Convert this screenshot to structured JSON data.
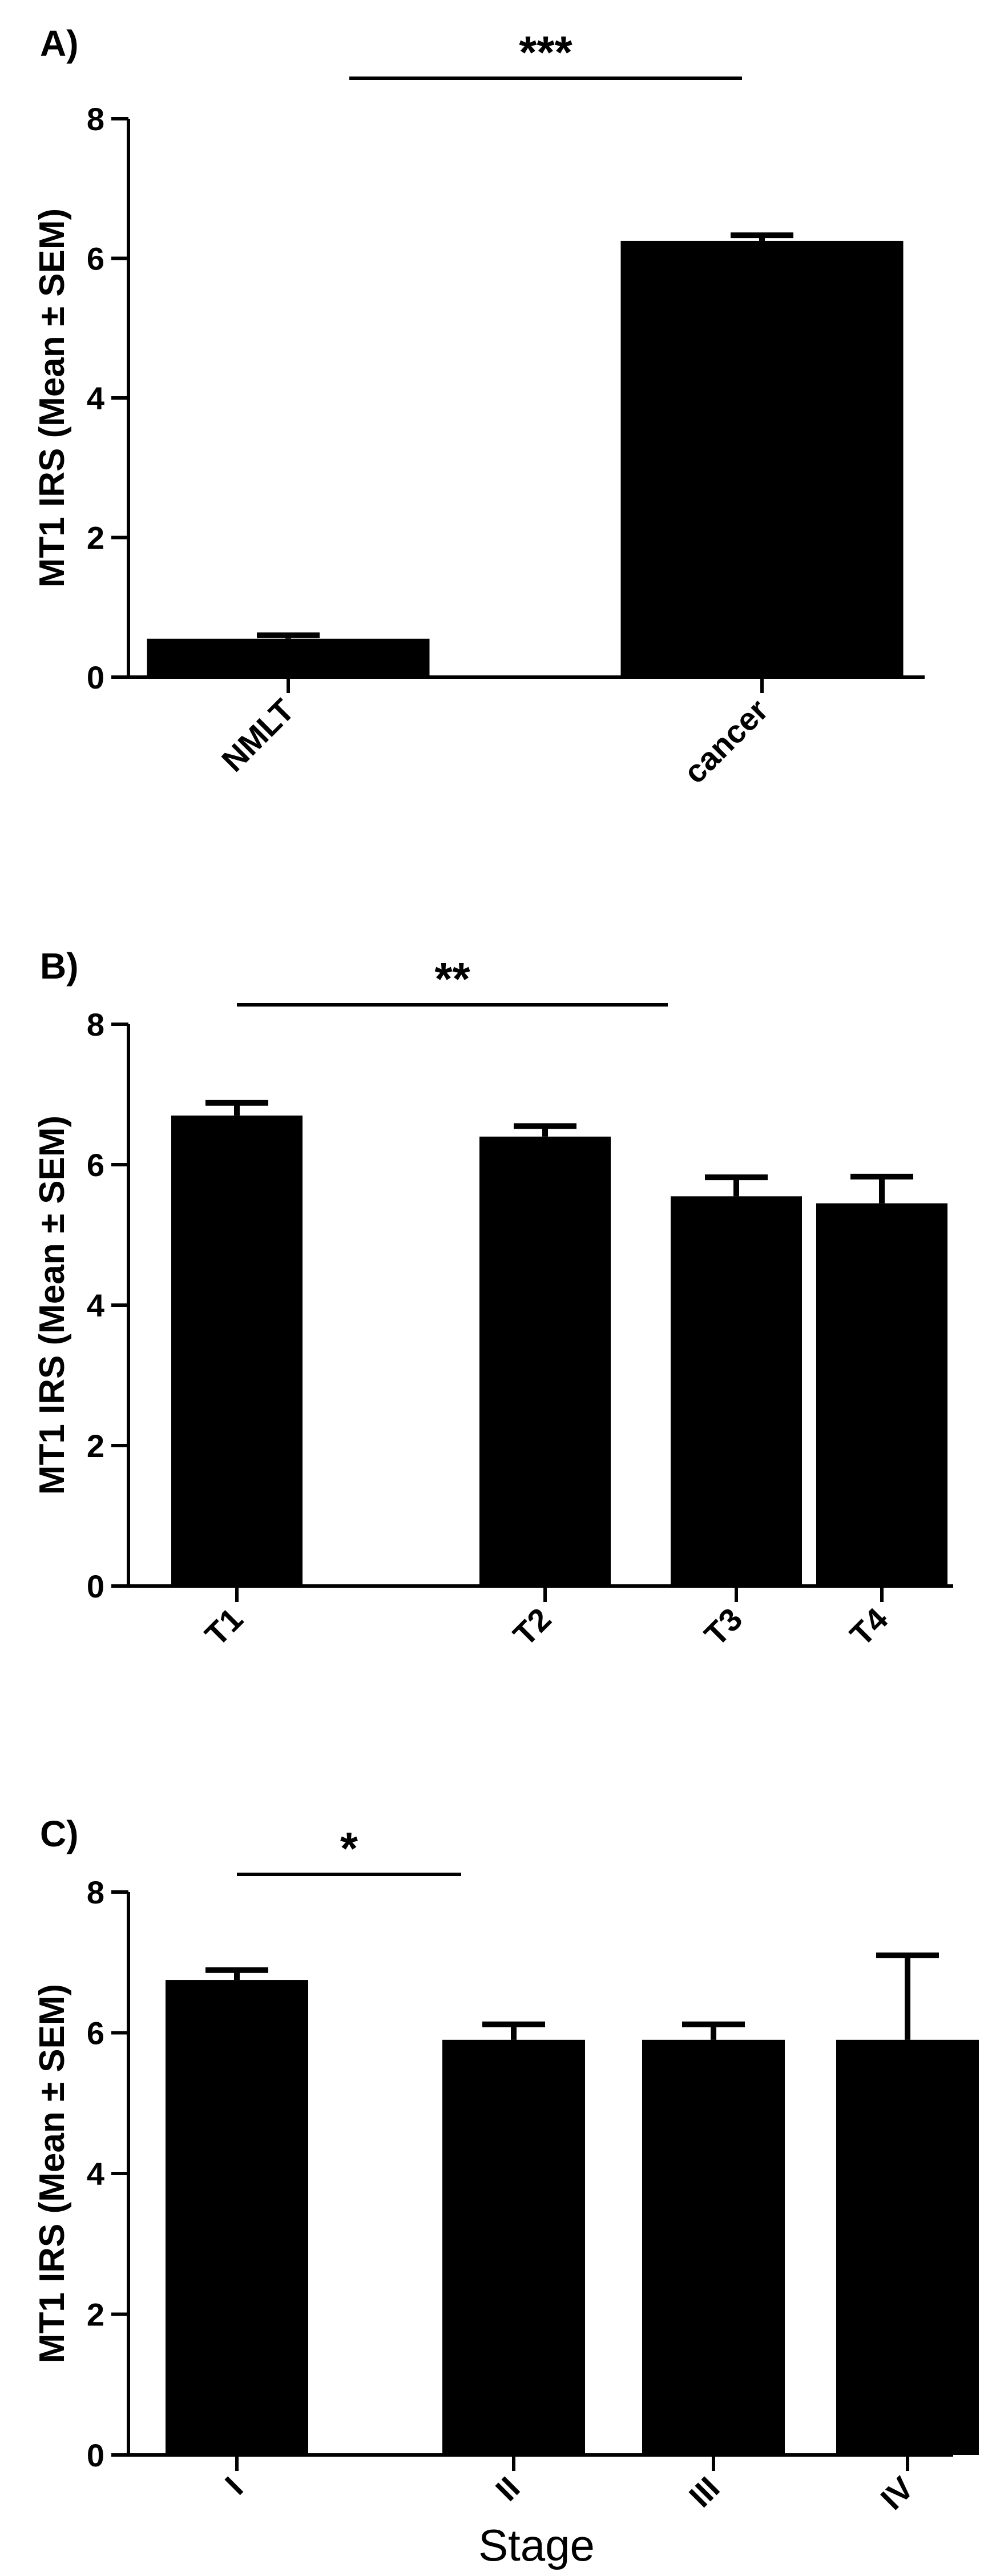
{
  "chart_data": [
    {
      "panel": "A)",
      "type": "bar",
      "ylabel": "MT1 IRS (Mean ± SEM)",
      "xlabel": "",
      "ylim": [
        0,
        8
      ],
      "yticks": [
        0,
        2,
        4,
        6,
        8
      ],
      "categories": [
        "NMLT",
        "cancer"
      ],
      "values": [
        0.55,
        6.25
      ],
      "errors": [
        0.05,
        0.08
      ],
      "bar_color": "#000000",
      "significance": [
        {
          "from": 0,
          "to": 1,
          "label": "***"
        }
      ]
    },
    {
      "panel": "B)",
      "type": "bar",
      "ylabel": "MT1 IRS (Mean ± SEM)",
      "xlabel": "",
      "ylim": [
        0,
        8
      ],
      "yticks": [
        0,
        2,
        4,
        6,
        8
      ],
      "categories": [
        "T1",
        "T2",
        "T3",
        "T4"
      ],
      "values": [
        6.7,
        6.4,
        5.55,
        5.45
      ],
      "errors": [
        0.18,
        0.15,
        0.27,
        0.38
      ],
      "bar_color": "#000000",
      "significance": [
        {
          "from": 0,
          "to": 2,
          "label": "**"
        }
      ]
    },
    {
      "panel": "C)",
      "type": "bar",
      "ylabel": "MT1 IRS (Mean ± SEM)",
      "xlabel": "Stage",
      "ylim": [
        0,
        8
      ],
      "yticks": [
        0,
        2,
        4,
        6,
        8
      ],
      "categories": [
        "I",
        "II",
        "III",
        "IV"
      ],
      "values": [
        6.75,
        5.9,
        5.9,
        5.9
      ],
      "errors": [
        0.14,
        0.22,
        0.22,
        1.2
      ],
      "bar_color": "#000000",
      "significance": [
        {
          "from": 0,
          "to": 1,
          "label": "*"
        }
      ]
    }
  ]
}
